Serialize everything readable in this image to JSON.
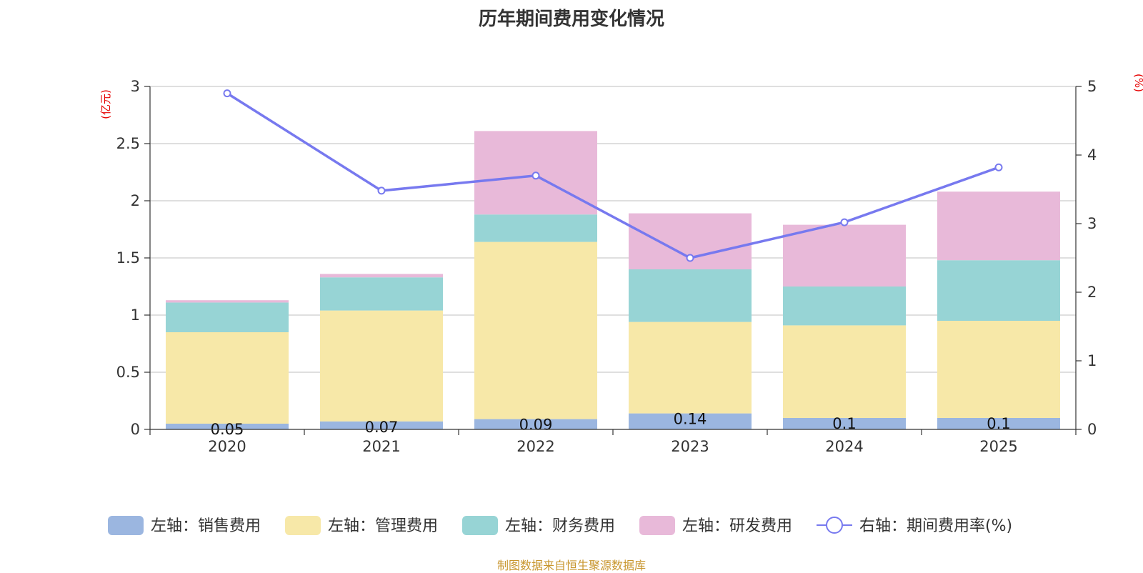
{
  "chart_data": {
    "type": "bar",
    "title": "历年期间费用变化情况",
    "categories": [
      "2020",
      "2021",
      "2022",
      "2023",
      "2024",
      "2025"
    ],
    "series": [
      {
        "name": "左轴：销售费用",
        "axis": "left",
        "color": "#9bb6e0",
        "values": [
          0.05,
          0.07,
          0.09,
          0.14,
          0.1,
          0.1
        ],
        "labels": [
          "0.05",
          "0.07",
          "0.09",
          "0.14",
          "0.1",
          "0.1"
        ]
      },
      {
        "name": "左轴：管理费用",
        "axis": "left",
        "color": "#f7e8a8",
        "values": [
          0.8,
          0.97,
          1.55,
          0.8,
          0.81,
          0.85
        ]
      },
      {
        "name": "左轴：财务费用",
        "axis": "left",
        "color": "#97d4d5",
        "values": [
          0.26,
          0.29,
          0.24,
          0.46,
          0.34,
          0.53
        ]
      },
      {
        "name": "左轴：研发费用",
        "axis": "left",
        "color": "#e8b9d9",
        "values": [
          0.02,
          0.03,
          0.73,
          0.49,
          0.54,
          0.6
        ]
      }
    ],
    "line_series": {
      "name": "右轴：期间费用率(%)",
      "axis": "right",
      "color": "#7779ef",
      "values": [
        4.9,
        3.48,
        3.7,
        2.5,
        3.02,
        3.82
      ]
    },
    "left_axis": {
      "unit": "(亿元)",
      "min": 0,
      "max": 3,
      "ticks": [
        "0",
        "0.5",
        "1",
        "1.5",
        "2",
        "2.5",
        "3"
      ]
    },
    "right_axis": {
      "unit": "(%)",
      "min": 0,
      "max": 5,
      "ticks": [
        "0",
        "1",
        "2",
        "3",
        "4",
        "5"
      ]
    },
    "grid": true,
    "legend_position": "bottom"
  },
  "footer": {
    "source": "制图数据来自恒生聚源数据库"
  }
}
